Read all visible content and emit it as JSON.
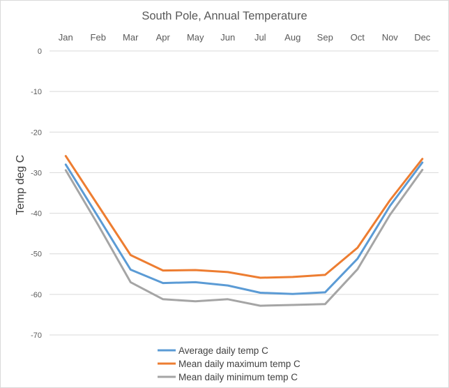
{
  "chart_data": {
    "type": "line",
    "title": "South Pole, Annual Temperature",
    "xlabel": "",
    "ylabel": "Temp deg C",
    "categories": [
      "Jan",
      "Feb",
      "Mar",
      "Apr",
      "May",
      "Jun",
      "Jul",
      "Aug",
      "Sep",
      "Oct",
      "Nov",
      "Dec"
    ],
    "ylim": [
      -70,
      0
    ],
    "yticks": [
      0,
      -10,
      -20,
      -30,
      -40,
      -50,
      -60,
      -70
    ],
    "x_axis_position": "top",
    "grid": true,
    "legend_position": "bottom",
    "series": [
      {
        "name": "Average daily temp C",
        "color": "#5b9bd5",
        "values": [
          -28.0,
          -40.9,
          -53.9,
          -57.2,
          -57.0,
          -57.8,
          -59.6,
          -59.9,
          -59.5,
          -51.2,
          -38.2,
          -27.5
        ]
      },
      {
        "name": "Mean daily maximum temp C",
        "color": "#ed7d31",
        "values": [
          -25.9,
          -38.1,
          -50.3,
          -54.1,
          -54.0,
          -54.5,
          -55.9,
          -55.7,
          -55.2,
          -48.5,
          -36.8,
          -26.6
        ]
      },
      {
        "name": "Mean daily minimum temp C",
        "color": "#a5a5a5",
        "values": [
          -29.4,
          -42.9,
          -57.0,
          -61.2,
          -61.7,
          -61.2,
          -62.8,
          -62.6,
          -62.4,
          -53.8,
          -40.4,
          -29.3
        ]
      }
    ]
  }
}
